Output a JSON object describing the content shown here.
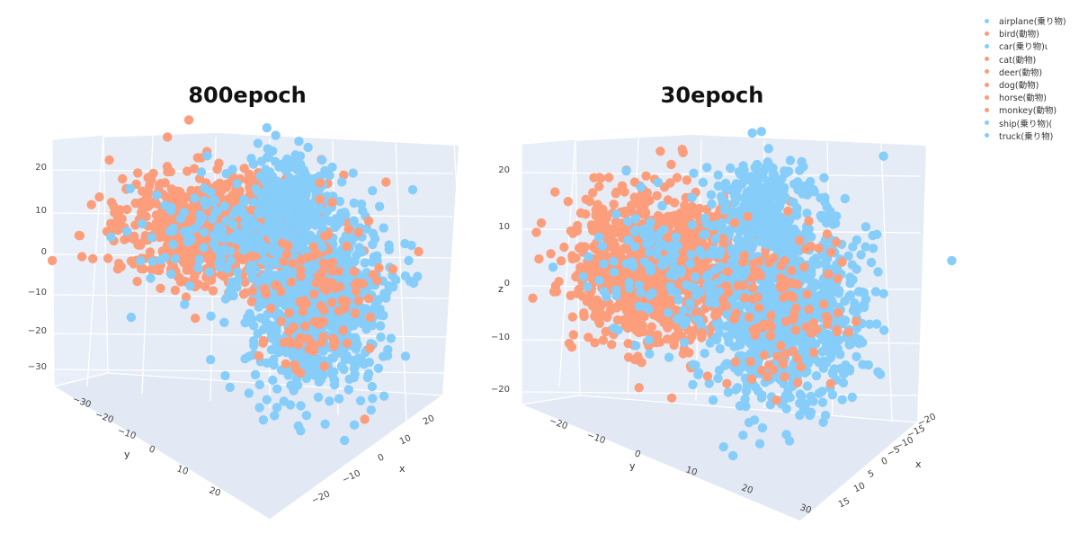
{
  "chart_data": [
    {
      "type": "scatter3d",
      "title": "800epoch",
      "axes": {
        "x": {
          "label": "x",
          "ticks": [
            "20",
            "10",
            "0",
            "−10",
            "−20"
          ],
          "range": [
            -20,
            20
          ]
        },
        "y": {
          "label": "y",
          "ticks": [
            "−30",
            "−20",
            "−10",
            "0",
            "10",
            "20"
          ],
          "range": [
            -30,
            25
          ]
        },
        "z": {
          "label": "",
          "ticks": [
            "20",
            "10",
            "0",
            "−10",
            "−20",
            "−30"
          ],
          "range": [
            -33,
            25
          ]
        }
      },
      "clusters": [
        {
          "group": "動物",
          "color": "#fc9d7b",
          "approx_center": {
            "y": -15,
            "z": 8
          }
        },
        {
          "group": "乗り物",
          "color": "#86cdf9",
          "approx_center": {
            "y": 5,
            "z": -8
          }
        }
      ]
    },
    {
      "type": "scatter3d",
      "title": "30epoch",
      "axes": {
        "x": {
          "label": "x",
          "ticks": [
            "−20",
            "−15",
            "−10",
            "−5",
            "0",
            "5",
            "10",
            "15"
          ],
          "range": [
            -20,
            16
          ]
        },
        "y": {
          "label": "y",
          "ticks": [
            "−20",
            "−10",
            "0",
            "10",
            "20",
            "30"
          ],
          "range": [
            -25,
            32
          ]
        },
        "z": {
          "label": "z",
          "ticks": [
            "20",
            "10",
            "0",
            "−10",
            "−20"
          ],
          "range": [
            -25,
            25
          ]
        }
      },
      "clusters": [
        {
          "group": "動物",
          "color": "#fc9d7b",
          "approx_center": {
            "y": -12,
            "z": 2
          }
        },
        {
          "group": "乗り物",
          "color": "#86cdf9",
          "approx_center": {
            "y": 10,
            "z": -8
          }
        }
      ]
    }
  ],
  "legend": [
    {
      "label": "airplane(乗り物)",
      "color": "#86cdf9"
    },
    {
      "label": "bird(動物)",
      "color": "#fc9d7b"
    },
    {
      "label": "car(乗り物)ι",
      "color": "#86cdf9"
    },
    {
      "label": "cat(動物)",
      "color": "#fc9d7b"
    },
    {
      "label": "deer(動物)",
      "color": "#fc9d7b"
    },
    {
      "label": "dog(動物)",
      "color": "#fc9d7b"
    },
    {
      "label": "horse(動物)",
      "color": "#fc9d7b"
    },
    {
      "label": "monkey(動物)",
      "color": "#fc9d7b"
    },
    {
      "label": "ship(乗り物)(",
      "color": "#86cdf9"
    },
    {
      "label": "truck(乗り物)",
      "color": "#86cdf9"
    }
  ],
  "colors": {
    "animal": "#fc9d7b",
    "vehicle": "#86cdf9",
    "pane": "#e5ecf6",
    "grid": "#ffffff"
  }
}
